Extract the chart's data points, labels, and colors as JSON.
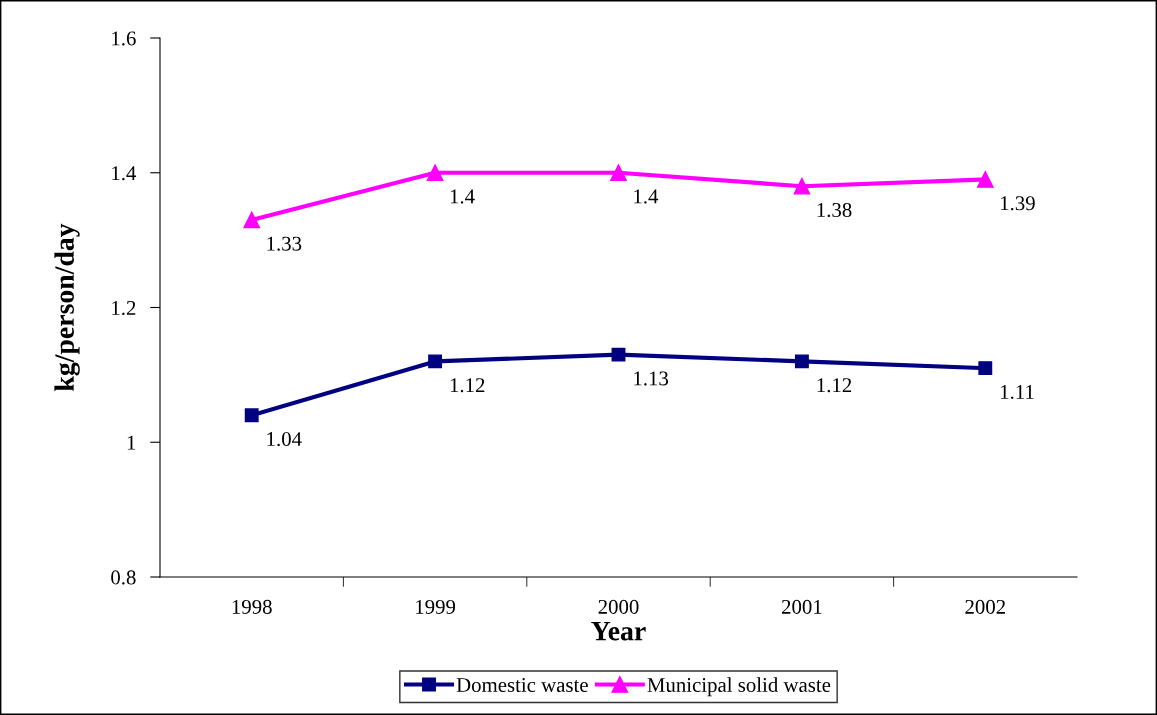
{
  "chart_data": {
    "type": "line",
    "xlabel": "Year",
    "ylabel": "kg/person/day",
    "categories": [
      "1998",
      "1999",
      "2000",
      "2001",
      "2002"
    ],
    "series": [
      {
        "name": "Domestic waste",
        "color": "#000080",
        "marker": "square",
        "values": [
          1.04,
          1.12,
          1.13,
          1.12,
          1.11
        ]
      },
      {
        "name": "Municipal solid waste",
        "color": "#ff00ff",
        "marker": "triangle",
        "values": [
          1.33,
          1.4,
          1.4,
          1.38,
          1.39
        ]
      }
    ],
    "ylim": [
      0.8,
      1.6
    ],
    "yticks": [
      0.8,
      1,
      1.2,
      1.4,
      1.6
    ],
    "data_labels": true,
    "legend": "bottom",
    "grid": false,
    "line_style": "solid"
  }
}
